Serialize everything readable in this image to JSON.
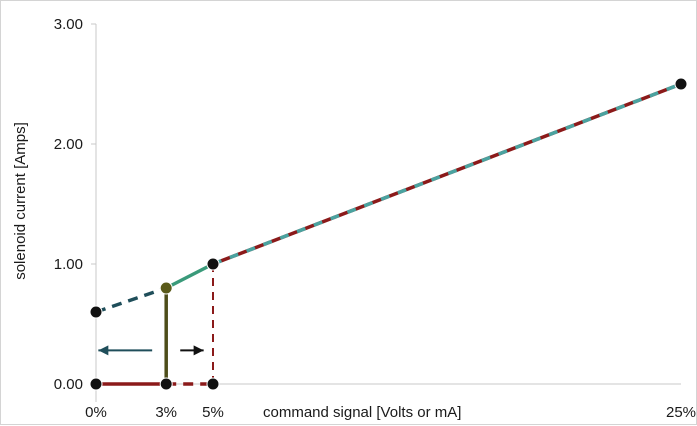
{
  "chart_data": {
    "type": "line",
    "xlabel": "command signal [Volts or mA]",
    "ylabel": "solenoid current [Amps]",
    "ylim": [
      0,
      3
    ],
    "y_ticks": [
      {
        "value": 0,
        "label": "0.00"
      },
      {
        "value": 1,
        "label": "1.00"
      },
      {
        "value": 2,
        "label": "2.00"
      },
      {
        "value": 3,
        "label": "3.00"
      }
    ],
    "x_ticks": [
      {
        "value": 0,
        "label": "0%"
      },
      {
        "value": 3,
        "label": "3%"
      },
      {
        "value": 5,
        "label": "5%"
      },
      {
        "value": 25,
        "label": "25%"
      }
    ],
    "grid": false,
    "points": [
      {
        "x": 0,
        "y": 0.6
      },
      {
        "x": 3,
        "y": 0.8
      },
      {
        "x": 5,
        "y": 1.0
      },
      {
        "x": 25,
        "y": 2.5
      },
      {
        "x": 0,
        "y": 0
      },
      {
        "x": 3,
        "y": 0
      },
      {
        "x": 5,
        "y": 0
      }
    ],
    "series": [
      {
        "style": "dashed",
        "color": "#1f4e5a",
        "x": [
          0,
          3
        ],
        "y": [
          0.6,
          0.8
        ]
      },
      {
        "style": "solid",
        "color": "#3a9a7a",
        "x": [
          3,
          5
        ],
        "y": [
          0.8,
          1.0
        ]
      },
      {
        "style": "dashed-two-tone",
        "color": "#8b1a1a",
        "color2": "#4aa3a0",
        "x": [
          5,
          25
        ],
        "y": [
          1.0,
          2.5
        ]
      },
      {
        "style": "solid",
        "color": "#8b1a1a",
        "x": [
          0,
          3
        ],
        "y": [
          0,
          0
        ]
      },
      {
        "style": "dashed",
        "color": "#8b1a1a",
        "x": [
          3,
          5
        ],
        "y": [
          0,
          0
        ]
      }
    ],
    "vertical_markers": [
      {
        "x": 3,
        "y_from": 0,
        "y_to": 0.8,
        "style": "solid",
        "color": "#4d4d1a"
      },
      {
        "x": 5,
        "y_from": 0,
        "y_to": 1.0,
        "style": "dashed",
        "color": "#8b1a1a"
      }
    ],
    "arrows": [
      {
        "from_x": 2.4,
        "to_x": 0.1,
        "y": 0.28,
        "color": "#1f4e5a"
      },
      {
        "from_x": 3.6,
        "to_x": 4.6,
        "y": 0.28,
        "color": "#111111"
      }
    ],
    "point_colors": {
      "default": "#111111",
      "highlight": "#5a5a1a"
    }
  }
}
